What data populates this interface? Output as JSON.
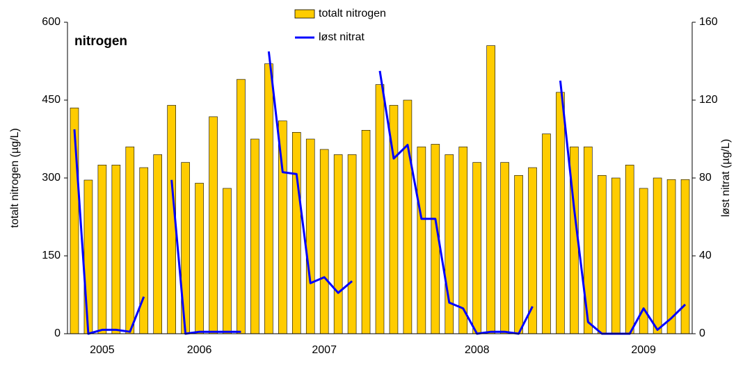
{
  "chart_data": {
    "type": "bar",
    "annotation": "nitrogen",
    "ylabel": "totalt nitrogen (µg/L)",
    "y2label": "løst nitrat (µg/L)",
    "categories": [
      null,
      null,
      "2005",
      null,
      null,
      null,
      null,
      null,
      null,
      "2006",
      null,
      null,
      null,
      null,
      null,
      null,
      null,
      null,
      "2007",
      null,
      null,
      null,
      null,
      null,
      null,
      null,
      null,
      null,
      null,
      "2008",
      null,
      null,
      null,
      null,
      null,
      null,
      null,
      null,
      null,
      null,
      null,
      "2009",
      null,
      null,
      null
    ],
    "series": [
      {
        "name": "totalt nitrogen",
        "type": "bar",
        "color": "#FFCC00",
        "values": [
          435,
          296,
          325,
          325,
          360,
          320,
          345,
          440,
          330,
          290,
          418,
          280,
          490,
          375,
          520,
          410,
          388,
          375,
          355,
          345,
          345,
          392,
          480,
          440,
          450,
          360,
          365,
          345,
          360,
          330,
          555,
          330,
          305,
          320,
          385,
          465,
          360,
          360,
          305,
          300,
          325,
          280,
          300,
          297,
          297
        ]
      },
      {
        "name": "løst nitrat",
        "type": "line",
        "axis": "y2",
        "color": "#0000FF",
        "values": [
          105,
          0,
          2,
          2,
          1,
          19,
          null,
          79,
          0,
          1,
          1,
          1,
          1,
          null,
          145,
          83,
          82,
          26,
          29,
          21,
          27,
          null,
          135,
          90,
          97,
          59,
          59,
          16,
          13,
          0,
          1,
          1,
          0,
          14,
          null,
          130,
          64,
          6,
          0,
          0,
          0,
          13,
          2,
          8,
          15
        ]
      }
    ],
    "ylim": [
      0,
      600
    ],
    "yticks": [
      0,
      150,
      300,
      450,
      600
    ],
    "y2lim": [
      0,
      160
    ],
    "y2ticks": [
      0,
      40,
      80,
      120,
      160
    ],
    "legend": "top"
  }
}
